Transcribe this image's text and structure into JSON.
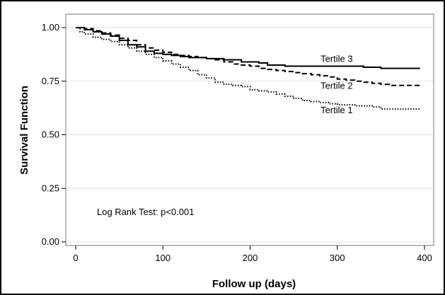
{
  "chart_data": {
    "type": "line",
    "step": true,
    "xlabel": "Follow up (days)",
    "ylabel": "Survival Function",
    "xlim": [
      0,
      400
    ],
    "ylim": [
      0,
      1
    ],
    "x_ticks": [
      0,
      100,
      200,
      300,
      400
    ],
    "x_tick_labels": [
      "0",
      "100",
      "200",
      "300",
      "400"
    ],
    "y_ticks": [
      0,
      0.25,
      0.5,
      0.75,
      1
    ],
    "y_tick_labels": [
      "0.00",
      "0.25",
      "0.50",
      "0.75",
      "1.00"
    ],
    "grid": "horizontal",
    "annotation": "Log Rank Test: p<0.001",
    "series": [
      {
        "name": "Tertile 3",
        "style": "solid",
        "points": [
          [
            0,
            1.0
          ],
          [
            10,
            0.99
          ],
          [
            20,
            0.98
          ],
          [
            30,
            0.97
          ],
          [
            40,
            0.96
          ],
          [
            50,
            0.94
          ],
          [
            60,
            0.92
          ],
          [
            70,
            0.91
          ],
          [
            80,
            0.89
          ],
          [
            90,
            0.88
          ],
          [
            100,
            0.875
          ],
          [
            110,
            0.87
          ],
          [
            120,
            0.865
          ],
          [
            130,
            0.86
          ],
          [
            150,
            0.855
          ],
          [
            170,
            0.85
          ],
          [
            190,
            0.84
          ],
          [
            210,
            0.835
          ],
          [
            220,
            0.825
          ],
          [
            240,
            0.82
          ],
          [
            280,
            0.82
          ],
          [
            330,
            0.815
          ],
          [
            350,
            0.81
          ],
          [
            395,
            0.81
          ]
        ]
      },
      {
        "name": "Tertile 2",
        "style": "dashed",
        "points": [
          [
            0,
            1.0
          ],
          [
            10,
            0.995
          ],
          [
            20,
            0.985
          ],
          [
            30,
            0.975
          ],
          [
            40,
            0.965
          ],
          [
            50,
            0.95
          ],
          [
            60,
            0.94
          ],
          [
            70,
            0.92
          ],
          [
            80,
            0.905
          ],
          [
            90,
            0.895
          ],
          [
            100,
            0.885
          ],
          [
            110,
            0.875
          ],
          [
            120,
            0.87
          ],
          [
            130,
            0.865
          ],
          [
            140,
            0.86
          ],
          [
            150,
            0.855
          ],
          [
            160,
            0.85
          ],
          [
            170,
            0.84
          ],
          [
            180,
            0.83
          ],
          [
            190,
            0.825
          ],
          [
            200,
            0.82
          ],
          [
            210,
            0.81
          ],
          [
            220,
            0.805
          ],
          [
            230,
            0.8
          ],
          [
            240,
            0.795
          ],
          [
            250,
            0.79
          ],
          [
            260,
            0.785
          ],
          [
            270,
            0.78
          ],
          [
            280,
            0.775
          ],
          [
            290,
            0.77
          ],
          [
            300,
            0.76
          ],
          [
            310,
            0.755
          ],
          [
            320,
            0.75
          ],
          [
            330,
            0.745
          ],
          [
            340,
            0.74
          ],
          [
            350,
            0.735
          ],
          [
            360,
            0.73
          ],
          [
            395,
            0.73
          ]
        ]
      },
      {
        "name": "Tertile 1",
        "style": "dotted",
        "points": [
          [
            0,
            1.0
          ],
          [
            5,
            0.98
          ],
          [
            10,
            0.97
          ],
          [
            20,
            0.955
          ],
          [
            30,
            0.945
          ],
          [
            40,
            0.935
          ],
          [
            50,
            0.92
          ],
          [
            60,
            0.905
          ],
          [
            70,
            0.89
          ],
          [
            80,
            0.875
          ],
          [
            90,
            0.86
          ],
          [
            100,
            0.845
          ],
          [
            110,
            0.83
          ],
          [
            120,
            0.815
          ],
          [
            130,
            0.8
          ],
          [
            140,
            0.78
          ],
          [
            150,
            0.765
          ],
          [
            160,
            0.745
          ],
          [
            170,
            0.735
          ],
          [
            180,
            0.73
          ],
          [
            190,
            0.725
          ],
          [
            200,
            0.71
          ],
          [
            210,
            0.705
          ],
          [
            220,
            0.7
          ],
          [
            230,
            0.69
          ],
          [
            240,
            0.68
          ],
          [
            250,
            0.67
          ],
          [
            260,
            0.66
          ],
          [
            270,
            0.655
          ],
          [
            280,
            0.65
          ],
          [
            290,
            0.645
          ],
          [
            300,
            0.64
          ],
          [
            320,
            0.635
          ],
          [
            340,
            0.63
          ],
          [
            350,
            0.62
          ],
          [
            395,
            0.618
          ]
        ]
      }
    ],
    "series_label_positions": {
      "Tertile 3": [
        310,
        0.84
      ],
      "Tertile 2": [
        310,
        0.715
      ],
      "Tertile 1": [
        310,
        0.6
      ]
    }
  }
}
